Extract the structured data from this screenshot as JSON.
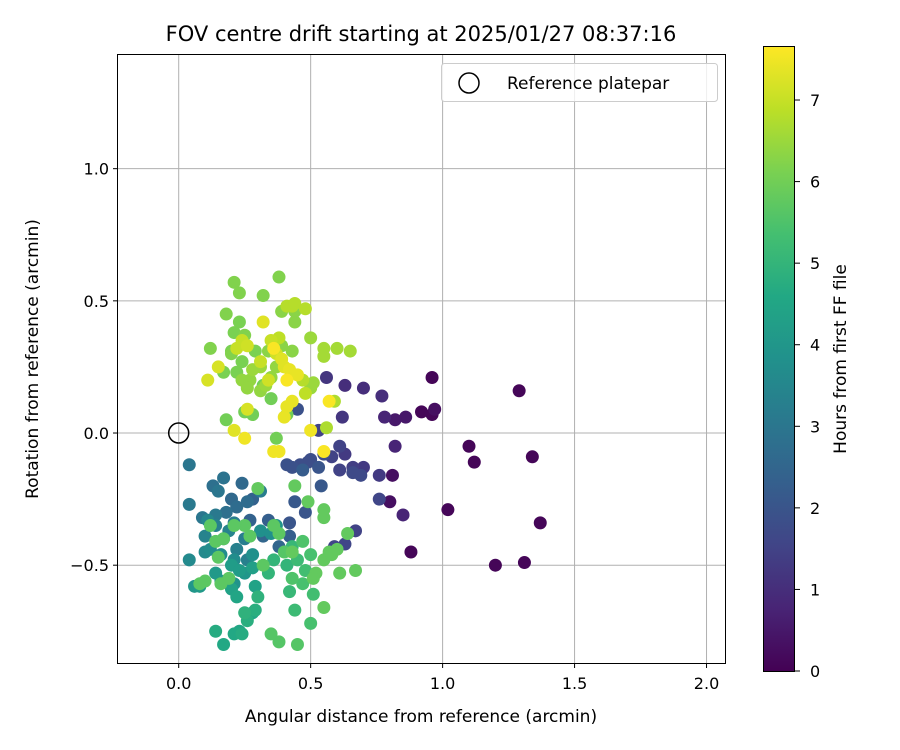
{
  "chart_data": {
    "type": "scatter",
    "title": "FOV centre drift starting at 2025/01/27 08:37:16",
    "xlabel": "Angular distance from reference (arcmin)",
    "ylabel": "Rotation from reference (arcmin)",
    "xlim": [
      -0.23,
      2.07
    ],
    "ylim": [
      -0.87,
      1.43
    ],
    "xticks": [
      0.0,
      0.5,
      1.0,
      1.5,
      2.0
    ],
    "xtick_labels": [
      "0.0",
      "0.5",
      "1.0",
      "1.5",
      "2.0"
    ],
    "yticks": [
      -0.5,
      0.0,
      0.5,
      1.0
    ],
    "ytick_labels": [
      "−0.5",
      "0.0",
      "0.5",
      "1.0"
    ],
    "grid": true,
    "legend": {
      "position": "top-right",
      "entries": [
        {
          "label": "Reference platepar",
          "marker": "open-circle"
        }
      ]
    },
    "reference_point": {
      "x": 0.0,
      "y": 0.0
    },
    "colorbar": {
      "label": "Hours from first FF file",
      "colormap": "viridis",
      "range": [
        0,
        7.65
      ],
      "ticks": [
        0,
        1,
        2,
        3,
        4,
        5,
        6,
        7
      ],
      "tick_labels": [
        "0",
        "1",
        "2",
        "3",
        "4",
        "5",
        "6",
        "7"
      ]
    },
    "points": [
      [
        0.96,
        0.21,
        0.1
      ],
      [
        1.29,
        0.16,
        0.1
      ],
      [
        0.96,
        0.07,
        0.1
      ],
      [
        0.92,
        0.08,
        0.1
      ],
      [
        1.1,
        -0.05,
        0.1
      ],
      [
        1.12,
        -0.11,
        0.1
      ],
      [
        1.34,
        -0.09,
        0.1
      ],
      [
        1.37,
        -0.34,
        0.1
      ],
      [
        1.02,
        -0.29,
        0.1
      ],
      [
        0.88,
        -0.45,
        0.1
      ],
      [
        1.2,
        -0.5,
        0.1
      ],
      [
        1.31,
        -0.49,
        0.1
      ],
      [
        0.8,
        -0.26,
        0.3
      ],
      [
        0.81,
        -0.16,
        0.3
      ],
      [
        0.97,
        0.09,
        0.3
      ],
      [
        0.86,
        0.06,
        0.5
      ],
      [
        0.82,
        0.05,
        0.5
      ],
      [
        0.78,
        0.06,
        0.8
      ],
      [
        0.82,
        -0.05,
        0.8
      ],
      [
        0.85,
        -0.31,
        0.8
      ],
      [
        0.77,
        0.14,
        1.0
      ],
      [
        0.7,
        0.17,
        1.0
      ],
      [
        0.63,
        0.18,
        1.0
      ],
      [
        0.56,
        0.21,
        1.2
      ],
      [
        0.62,
        0.06,
        1.2
      ],
      [
        0.63,
        -0.08,
        1.3
      ],
      [
        0.7,
        -0.13,
        1.3
      ],
      [
        0.76,
        -0.16,
        1.3
      ],
      [
        0.66,
        -0.13,
        1.4
      ],
      [
        0.61,
        -0.05,
        1.5
      ],
      [
        0.58,
        -0.09,
        1.5
      ],
      [
        0.53,
        0.01,
        1.5
      ],
      [
        0.61,
        -0.14,
        1.5
      ],
      [
        0.67,
        -0.37,
        1.5
      ],
      [
        0.63,
        -0.42,
        1.6
      ],
      [
        0.59,
        -0.43,
        1.6
      ],
      [
        0.76,
        -0.25,
        1.6
      ],
      [
        0.69,
        -0.16,
        1.7
      ],
      [
        0.66,
        -0.15,
        1.7
      ],
      [
        0.55,
        -0.08,
        1.8
      ],
      [
        0.5,
        -0.1,
        1.8
      ],
      [
        0.49,
        -0.11,
        1.8
      ],
      [
        0.46,
        -0.12,
        1.8
      ],
      [
        0.41,
        -0.12,
        1.9
      ],
      [
        0.43,
        -0.13,
        1.9
      ],
      [
        0.45,
        0.09,
        1.9
      ],
      [
        0.53,
        -0.13,
        2.0
      ],
      [
        0.42,
        -0.34,
        2.0
      ],
      [
        0.48,
        -0.3,
        2.0
      ],
      [
        0.44,
        -0.26,
        2.1
      ],
      [
        0.54,
        -0.2,
        2.1
      ],
      [
        0.47,
        -0.14,
        2.2
      ],
      [
        0.42,
        -0.39,
        2.3
      ],
      [
        0.34,
        -0.33,
        2.3
      ],
      [
        0.28,
        -0.25,
        2.4
      ],
      [
        0.27,
        -0.33,
        2.4
      ],
      [
        0.32,
        -0.39,
        2.5
      ],
      [
        0.38,
        -0.43,
        2.5
      ],
      [
        0.2,
        -0.25,
        2.6
      ],
      [
        0.24,
        -0.19,
        2.6
      ],
      [
        0.26,
        -0.26,
        2.7
      ],
      [
        0.22,
        -0.28,
        2.7
      ],
      [
        0.18,
        -0.3,
        2.8
      ],
      [
        0.13,
        -0.2,
        2.8
      ],
      [
        0.17,
        -0.17,
        2.9
      ],
      [
        0.04,
        -0.12,
        3.0
      ],
      [
        0.15,
        -0.22,
        3.0
      ],
      [
        0.09,
        -0.32,
        3.0
      ],
      [
        0.04,
        -0.27,
        3.1
      ],
      [
        0.14,
        -0.31,
        3.1
      ],
      [
        0.21,
        -0.34,
        3.2
      ],
      [
        0.25,
        -0.4,
        3.2
      ],
      [
        0.31,
        -0.22,
        3.2
      ],
      [
        0.22,
        -0.44,
        3.3
      ],
      [
        0.26,
        -0.48,
        3.3
      ],
      [
        0.14,
        -0.35,
        3.3
      ],
      [
        0.19,
        -0.37,
        3.4
      ],
      [
        0.17,
        -0.4,
        3.4
      ],
      [
        0.1,
        -0.39,
        3.4
      ],
      [
        0.11,
        -0.33,
        3.5
      ],
      [
        0.04,
        -0.48,
        3.6
      ],
      [
        0.1,
        -0.45,
        3.6
      ],
      [
        0.12,
        -0.44,
        3.7
      ],
      [
        0.16,
        -0.46,
        3.7
      ],
      [
        0.21,
        -0.48,
        3.7
      ],
      [
        0.28,
        -0.46,
        3.8
      ],
      [
        0.31,
        -0.37,
        3.8
      ],
      [
        0.35,
        -0.38,
        3.8
      ],
      [
        0.37,
        -0.35,
        3.9
      ],
      [
        0.21,
        -0.57,
        3.9
      ],
      [
        0.25,
        -0.53,
        4.0
      ],
      [
        0.16,
        -0.56,
        4.0
      ],
      [
        0.06,
        -0.58,
        4.0
      ],
      [
        0.08,
        -0.58,
        4.1
      ],
      [
        0.14,
        -0.53,
        4.1
      ],
      [
        0.2,
        -0.5,
        4.2
      ],
      [
        0.23,
        -0.52,
        4.2
      ],
      [
        0.28,
        -0.51,
        4.3
      ],
      [
        0.29,
        -0.58,
        4.4
      ],
      [
        0.2,
        -0.59,
        4.4
      ],
      [
        0.22,
        -0.62,
        4.5
      ],
      [
        0.28,
        -0.68,
        4.5
      ],
      [
        0.23,
        -0.75,
        4.5
      ],
      [
        0.21,
        -0.76,
        4.6
      ],
      [
        0.17,
        -0.8,
        4.6
      ],
      [
        0.14,
        -0.75,
        4.7
      ],
      [
        0.24,
        -0.76,
        4.7
      ],
      [
        0.26,
        -0.71,
        4.8
      ],
      [
        0.29,
        -0.67,
        4.8
      ],
      [
        0.25,
        -0.68,
        4.9
      ],
      [
        0.3,
        -0.62,
        4.9
      ],
      [
        0.34,
        -0.53,
        5.0
      ],
      [
        0.36,
        -0.48,
        5.0
      ],
      [
        0.41,
        -0.5,
        5.0
      ],
      [
        0.43,
        -0.43,
        5.1
      ],
      [
        0.42,
        -0.6,
        5.1
      ],
      [
        0.44,
        -0.67,
        5.2
      ],
      [
        0.45,
        -0.48,
        5.2
      ],
      [
        0.48,
        -0.52,
        5.3
      ],
      [
        0.51,
        -0.61,
        5.3
      ],
      [
        0.5,
        -0.72,
        5.4
      ],
      [
        0.47,
        -0.57,
        5.4
      ],
      [
        0.5,
        -0.46,
        5.4
      ],
      [
        0.47,
        -0.41,
        5.5
      ],
      [
        0.43,
        -0.55,
        5.5
      ],
      [
        0.38,
        -0.79,
        5.6
      ],
      [
        0.45,
        -0.8,
        5.6
      ],
      [
        0.35,
        -0.76,
        5.6
      ],
      [
        0.4,
        -0.45,
        5.6
      ],
      [
        0.38,
        -0.38,
        5.7
      ],
      [
        0.36,
        -0.35,
        5.7
      ],
      [
        0.32,
        -0.5,
        5.7
      ],
      [
        0.27,
        -0.39,
        5.7
      ],
      [
        0.25,
        -0.35,
        5.7
      ],
      [
        0.21,
        -0.35,
        5.7
      ],
      [
        0.17,
        -0.4,
        5.7
      ],
      [
        0.14,
        -0.41,
        5.7
      ],
      [
        0.15,
        -0.47,
        5.7
      ],
      [
        0.16,
        -0.57,
        5.7
      ],
      [
        0.19,
        -0.55,
        5.7
      ],
      [
        0.1,
        -0.56,
        5.7
      ],
      [
        0.08,
        -0.57,
        5.7
      ],
      [
        0.12,
        -0.35,
        5.7
      ],
      [
        0.55,
        -0.66,
        5.8
      ],
      [
        0.52,
        -0.53,
        5.8
      ],
      [
        0.51,
        -0.55,
        5.8
      ],
      [
        0.55,
        -0.48,
        5.8
      ],
      [
        0.57,
        -0.45,
        5.8
      ],
      [
        0.58,
        -0.46,
        5.8
      ],
      [
        0.6,
        -0.44,
        5.8
      ],
      [
        0.64,
        -0.38,
        5.8
      ],
      [
        0.61,
        -0.53,
        5.8
      ],
      [
        0.67,
        -0.52,
        5.8
      ],
      [
        0.55,
        -0.32,
        5.8
      ],
      [
        0.55,
        -0.29,
        5.8
      ],
      [
        0.49,
        -0.26,
        5.8
      ],
      [
        0.44,
        -0.2,
        5.8
      ],
      [
        0.3,
        -0.21,
        5.8
      ],
      [
        0.43,
        -0.45,
        5.8
      ],
      [
        0.18,
        0.05,
        6.0
      ],
      [
        0.25,
        0.08,
        6.0
      ],
      [
        0.28,
        0.07,
        6.0
      ],
      [
        0.35,
        0.13,
        6.0
      ],
      [
        0.37,
        -0.02,
        6.0
      ],
      [
        0.41,
        0.07,
        6.0
      ],
      [
        0.32,
        0.18,
        6.0
      ],
      [
        0.29,
        0.31,
        6.1
      ],
      [
        0.24,
        0.27,
        6.1
      ],
      [
        0.22,
        0.23,
        6.1
      ],
      [
        0.17,
        0.23,
        6.1
      ],
      [
        0.2,
        0.31,
        6.1
      ],
      [
        0.21,
        0.38,
        6.1
      ],
      [
        0.23,
        0.42,
        6.1
      ],
      [
        0.25,
        0.37,
        6.2
      ],
      [
        0.2,
        0.3,
        6.2
      ],
      [
        0.12,
        0.32,
        6.2
      ],
      [
        0.18,
        0.45,
        6.2
      ],
      [
        0.23,
        0.53,
        6.2
      ],
      [
        0.21,
        0.57,
        6.2
      ],
      [
        0.38,
        0.59,
        6.2
      ],
      [
        0.32,
        0.52,
        6.2
      ],
      [
        0.39,
        0.46,
        6.3
      ],
      [
        0.44,
        0.42,
        6.3
      ],
      [
        0.44,
        0.46,
        6.3
      ],
      [
        0.43,
        0.31,
        6.3
      ],
      [
        0.39,
        0.33,
        6.3
      ],
      [
        0.34,
        0.31,
        6.3
      ],
      [
        0.37,
        0.25,
        6.4
      ],
      [
        0.35,
        0.21,
        6.4
      ],
      [
        0.27,
        0.2,
        6.4
      ],
      [
        0.24,
        0.2,
        6.4
      ],
      [
        0.26,
        0.17,
        6.4
      ],
      [
        0.31,
        0.16,
        6.4
      ],
      [
        0.33,
        0.18,
        6.5
      ],
      [
        0.31,
        0.25,
        6.5
      ],
      [
        0.28,
        0.24,
        6.5
      ],
      [
        0.5,
        0.17,
        6.5
      ],
      [
        0.51,
        0.19,
        6.5
      ],
      [
        0.5,
        0.36,
        6.5
      ],
      [
        0.55,
        0.32,
        6.6
      ],
      [
        0.55,
        0.29,
        6.6
      ],
      [
        0.6,
        0.32,
        6.6
      ],
      [
        0.65,
        0.31,
        6.6
      ],
      [
        0.59,
        0.12,
        6.7
      ],
      [
        0.56,
        0.02,
        6.7
      ],
      [
        0.41,
        0.48,
        6.8
      ],
      [
        0.43,
        0.48,
        6.8
      ],
      [
        0.44,
        0.49,
        6.8
      ],
      [
        0.48,
        0.47,
        6.8
      ],
      [
        0.47,
        0.2,
        6.8
      ],
      [
        0.48,
        0.15,
        6.9
      ],
      [
        0.38,
        0.36,
        6.9
      ],
      [
        0.31,
        0.27,
        7.0
      ],
      [
        0.22,
        0.32,
        7.0
      ],
      [
        0.24,
        0.35,
        7.0
      ],
      [
        0.35,
        0.35,
        7.0
      ],
      [
        0.37,
        0.3,
        7.1
      ],
      [
        0.34,
        0.2,
        7.1
      ],
      [
        0.26,
        0.33,
        7.1
      ],
      [
        0.11,
        0.2,
        7.2
      ],
      [
        0.15,
        0.25,
        7.2
      ],
      [
        0.26,
        0.09,
        7.2
      ],
      [
        0.21,
        0.01,
        7.3
      ],
      [
        0.32,
        0.42,
        7.3
      ],
      [
        0.39,
        0.28,
        7.3
      ],
      [
        0.4,
        0.25,
        7.3
      ],
      [
        0.42,
        0.24,
        7.4
      ],
      [
        0.45,
        0.22,
        7.4
      ],
      [
        0.43,
        0.12,
        7.4
      ],
      [
        0.41,
        0.1,
        7.4
      ],
      [
        0.4,
        0.06,
        7.4
      ],
      [
        0.38,
        -0.07,
        7.5
      ],
      [
        0.36,
        -0.07,
        7.5
      ],
      [
        0.25,
        -0.02,
        7.5
      ],
      [
        0.5,
        0.01,
        7.5
      ],
      [
        0.55,
        -0.07,
        7.6
      ],
      [
        0.57,
        0.12,
        7.6
      ],
      [
        0.36,
        0.32,
        7.6
      ],
      [
        0.41,
        0.2,
        7.6
      ]
    ]
  }
}
